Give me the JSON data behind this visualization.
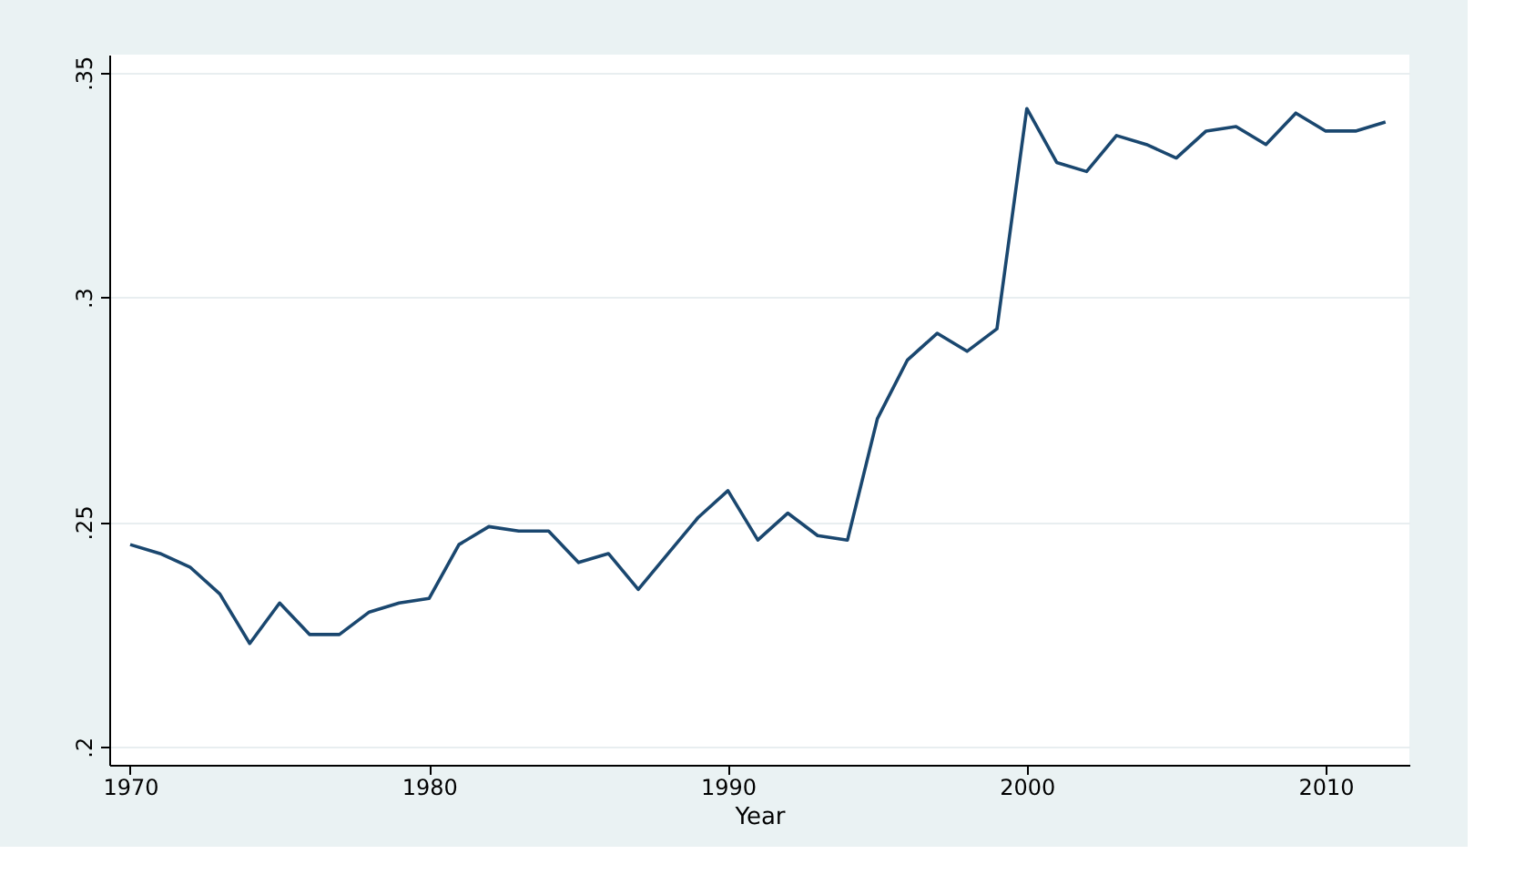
{
  "chart_data": {
    "type": "line",
    "xlabel": "Year",
    "x": [
      1970,
      1971,
      1972,
      1973,
      1974,
      1975,
      1976,
      1977,
      1978,
      1979,
      1980,
      1981,
      1982,
      1983,
      1984,
      1985,
      1986,
      1987,
      1988,
      1989,
      1990,
      1991,
      1992,
      1993,
      1994,
      1995,
      1996,
      1997,
      1998,
      1999,
      2000,
      2001,
      2002,
      2003,
      2004,
      2005,
      2006,
      2007,
      2008,
      2009,
      2010,
      2011,
      2012
    ],
    "series": [
      {
        "color": "#1a476f",
        "values": [
          0.245,
          0.243,
          0.24,
          0.234,
          0.223,
          0.232,
          0.225,
          0.225,
          0.23,
          0.232,
          0.233,
          0.245,
          0.249,
          0.248,
          0.248,
          0.241,
          0.243,
          0.235,
          0.243,
          0.251,
          0.257,
          0.246,
          0.252,
          0.247,
          0.246,
          0.273,
          0.286,
          0.292,
          0.288,
          0.293,
          0.342,
          0.33,
          0.328,
          0.336,
          0.334,
          0.331,
          0.337,
          0.338,
          0.334,
          0.341,
          0.337,
          0.337,
          0.339
        ]
      }
    ],
    "xlim": [
      1969.3,
      2012.8
    ],
    "xticks": [
      1970,
      1980,
      1990,
      2000,
      2010
    ],
    "ylim": [
      0.196,
      0.354
    ],
    "yticks": [
      {
        "value": 0.2,
        "label": ".2"
      },
      {
        "value": 0.25,
        "label": ".25"
      },
      {
        "value": 0.3,
        "label": ".3"
      },
      {
        "value": 0.35,
        "label": ".35"
      }
    ],
    "grid": "y",
    "legend": false,
    "marker": "none",
    "line_style": "solid"
  }
}
